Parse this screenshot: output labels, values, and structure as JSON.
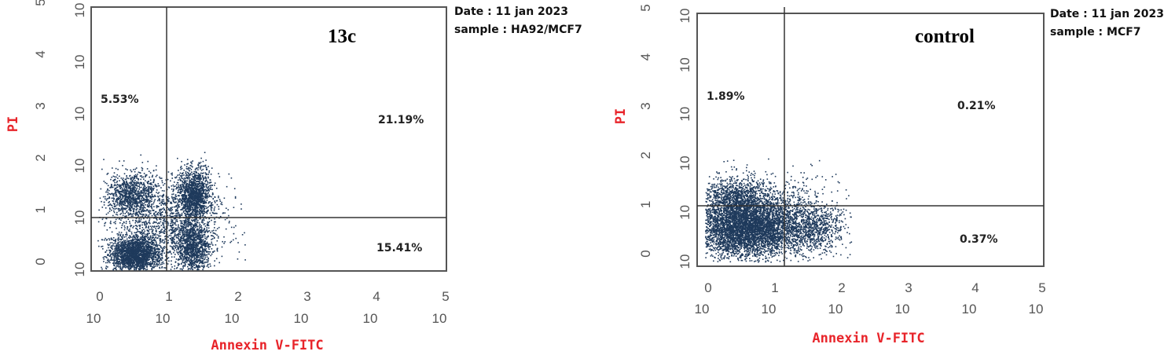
{
  "colors": {
    "dots": "#1f3a5c",
    "axis_title": "#e8242a",
    "frame": "#555555",
    "tick_text": "#555555"
  },
  "chart_data": [
    {
      "type": "scatter",
      "panel_label": "13c",
      "meta": {
        "date": "Date : 11 jan 2023",
        "sample": "sample : HA92/MCF7"
      },
      "xlabel": "Annexin V-FITC",
      "ylabel": "PI",
      "x_scale": "log",
      "y_scale": "log",
      "xlim": [
        0,
        5
      ],
      "ylim": [
        0,
        5
      ],
      "x_ticks": [
        {
          "base": "10",
          "exp": "0"
        },
        {
          "base": "10",
          "exp": "1"
        },
        {
          "base": "10",
          "exp": "2"
        },
        {
          "base": "10",
          "exp": "3"
        },
        {
          "base": "10",
          "exp": "4"
        },
        {
          "base": "10",
          "exp": "5"
        }
      ],
      "y_ticks": [
        {
          "base": "10",
          "exp": "0"
        },
        {
          "base": "10",
          "exp": "1"
        },
        {
          "base": "10",
          "exp": "2"
        },
        {
          "base": "10",
          "exp": "3"
        },
        {
          "base": "10",
          "exp": "4"
        },
        {
          "base": "10",
          "exp": "5"
        }
      ],
      "gate": {
        "x": 1.05,
        "y": 1.05
      },
      "quadrants": {
        "upper_left": "5.53%",
        "upper_right": "21.19%",
        "lower_right": "15.41%"
      },
      "clusters": [
        {
          "x": 0.55,
          "y": 0.3,
          "sx": 0.18,
          "sy": 0.17,
          "n": 2000
        },
        {
          "x": 0.5,
          "y": 1.45,
          "sx": 0.17,
          "sy": 0.21,
          "n": 900
        },
        {
          "x": 1.4,
          "y": 1.45,
          "sx": 0.12,
          "sy": 0.24,
          "n": 1300
        },
        {
          "x": 1.38,
          "y": 0.45,
          "sx": 0.13,
          "sy": 0.27,
          "n": 1100
        },
        {
          "x": 0.95,
          "y": 0.9,
          "sx": 0.45,
          "sy": 0.45,
          "n": 1400
        }
      ]
    },
    {
      "type": "scatter",
      "panel_label": "control",
      "meta": {
        "date": "Date : 11 jan 2023",
        "sample": "sample : MCF7"
      },
      "xlabel": "Annexin V-FITC",
      "ylabel": "PI",
      "x_scale": "log",
      "y_scale": "log",
      "xlim": [
        0,
        5
      ],
      "ylim": [
        0,
        5
      ],
      "x_ticks": [
        {
          "base": "10",
          "exp": "0"
        },
        {
          "base": "10",
          "exp": "1"
        },
        {
          "base": "10",
          "exp": "2"
        },
        {
          "base": "10",
          "exp": "3"
        },
        {
          "base": "10",
          "exp": "4"
        },
        {
          "base": "10",
          "exp": "5"
        }
      ],
      "y_ticks": [
        {
          "base": "10",
          "exp": "0"
        },
        {
          "base": "10",
          "exp": "1"
        },
        {
          "base": "10",
          "exp": "2"
        },
        {
          "base": "10",
          "exp": "3"
        },
        {
          "base": "10",
          "exp": "4"
        },
        {
          "base": "10",
          "exp": "5"
        }
      ],
      "gate": {
        "x": 1.2,
        "y": 1.2
      },
      "quadrants": {
        "upper_left": "1.89%",
        "upper_right": "0.21%",
        "lower_right": "0.37%"
      },
      "clusters": [
        {
          "x": 0.6,
          "y": 0.7,
          "sx": 0.38,
          "sy": 0.3,
          "n": 4200
        },
        {
          "x": 0.45,
          "y": 1.35,
          "sx": 0.25,
          "sy": 0.18,
          "n": 700
        },
        {
          "x": 1.6,
          "y": 0.7,
          "sx": 0.22,
          "sy": 0.25,
          "n": 700
        },
        {
          "x": 0.9,
          "y": 0.9,
          "sx": 0.55,
          "sy": 0.42,
          "n": 1300
        }
      ]
    }
  ]
}
